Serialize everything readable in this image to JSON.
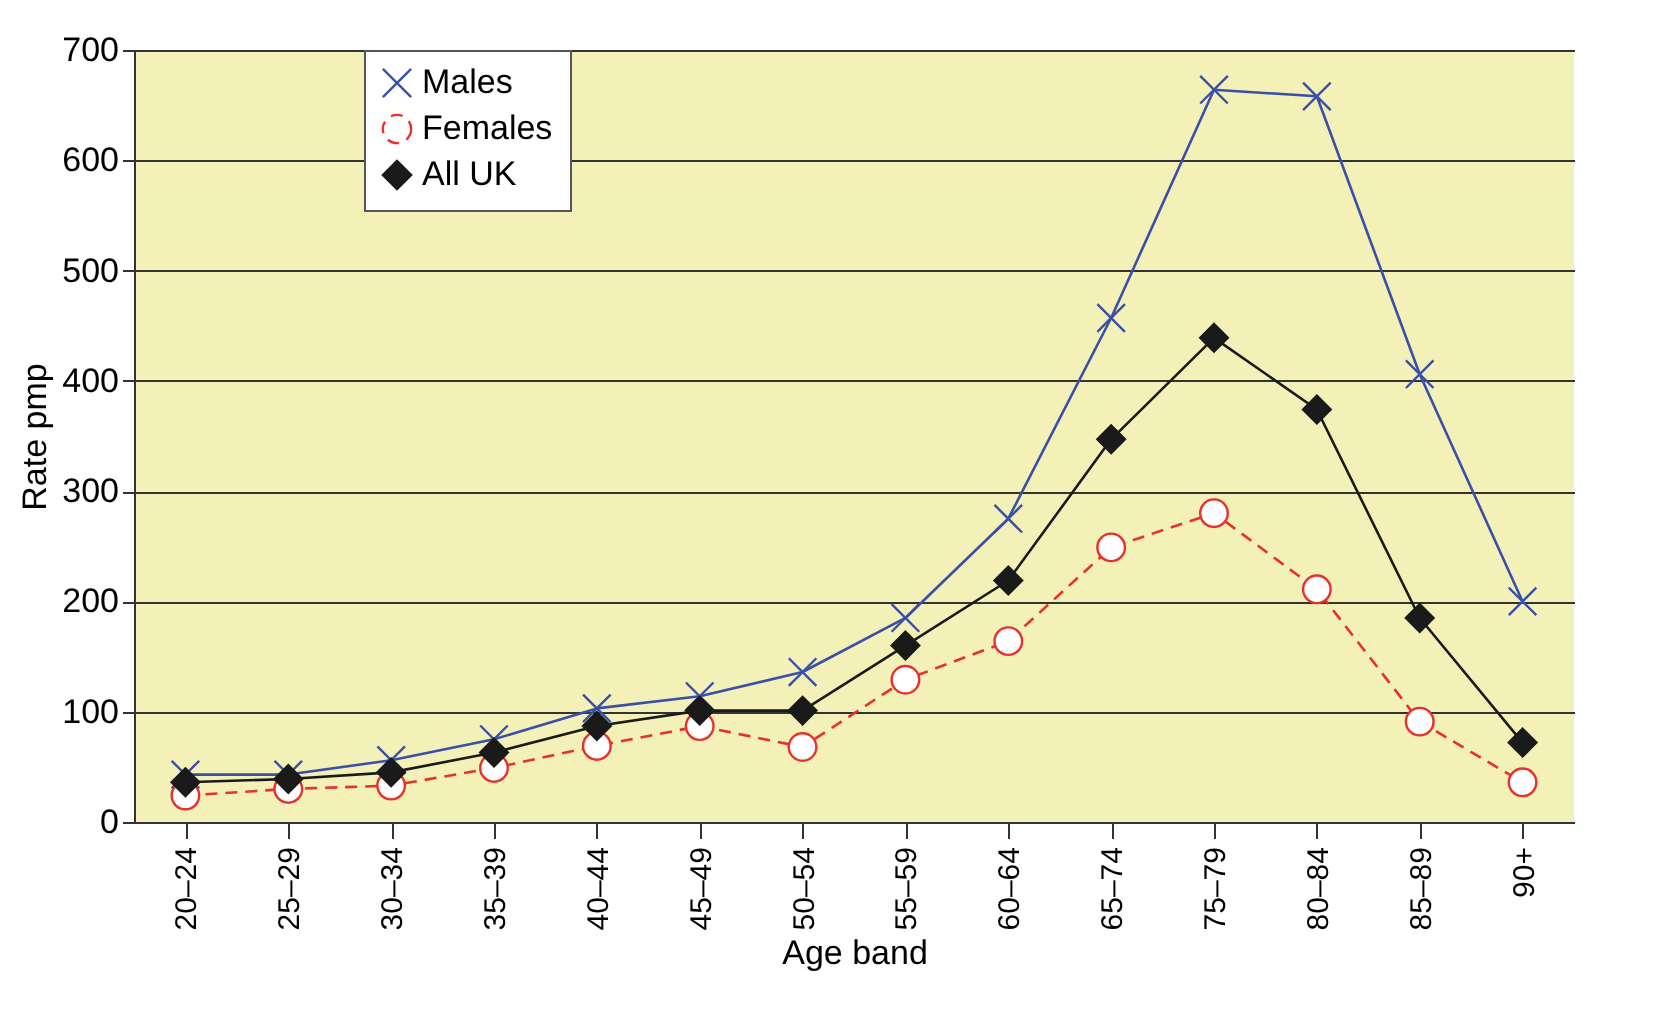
{
  "chart_data": {
    "type": "line",
    "xlabel": "Age band",
    "ylabel": "Rate pmp",
    "categories": [
      "20–24",
      "25–29",
      "30–34",
      "35–39",
      "40–44",
      "45–49",
      "50–54",
      "55–59",
      "60–64",
      "65–74",
      "75–79",
      "80–84",
      "85–89",
      "90+"
    ],
    "series": [
      {
        "name": "Males",
        "color": "#3a4fa8",
        "marker": "cross",
        "line_style": "solid",
        "values": [
          43,
          43,
          56,
          75,
          103,
          114,
          136,
          185,
          275,
          457,
          664,
          658,
          406,
          200
        ]
      },
      {
        "name": "Females",
        "color": "#e8302c",
        "marker": "circle",
        "line_style": "dashed",
        "values": [
          24,
          30,
          33,
          49,
          69,
          87,
          68,
          129,
          164,
          249,
          280,
          211,
          91,
          36
        ]
      },
      {
        "name": "All UK",
        "color": "#1a1a1a",
        "marker": "diamond",
        "line_style": "solid",
        "values": [
          36,
          39,
          45,
          63,
          87,
          101,
          101,
          160,
          219,
          347,
          439,
          374,
          185,
          72
        ]
      }
    ],
    "ylim": [
      0,
      700
    ],
    "yticks": [
      0,
      100,
      200,
      300,
      400,
      500,
      600,
      700
    ],
    "grid": "y",
    "legend": "top left"
  }
}
